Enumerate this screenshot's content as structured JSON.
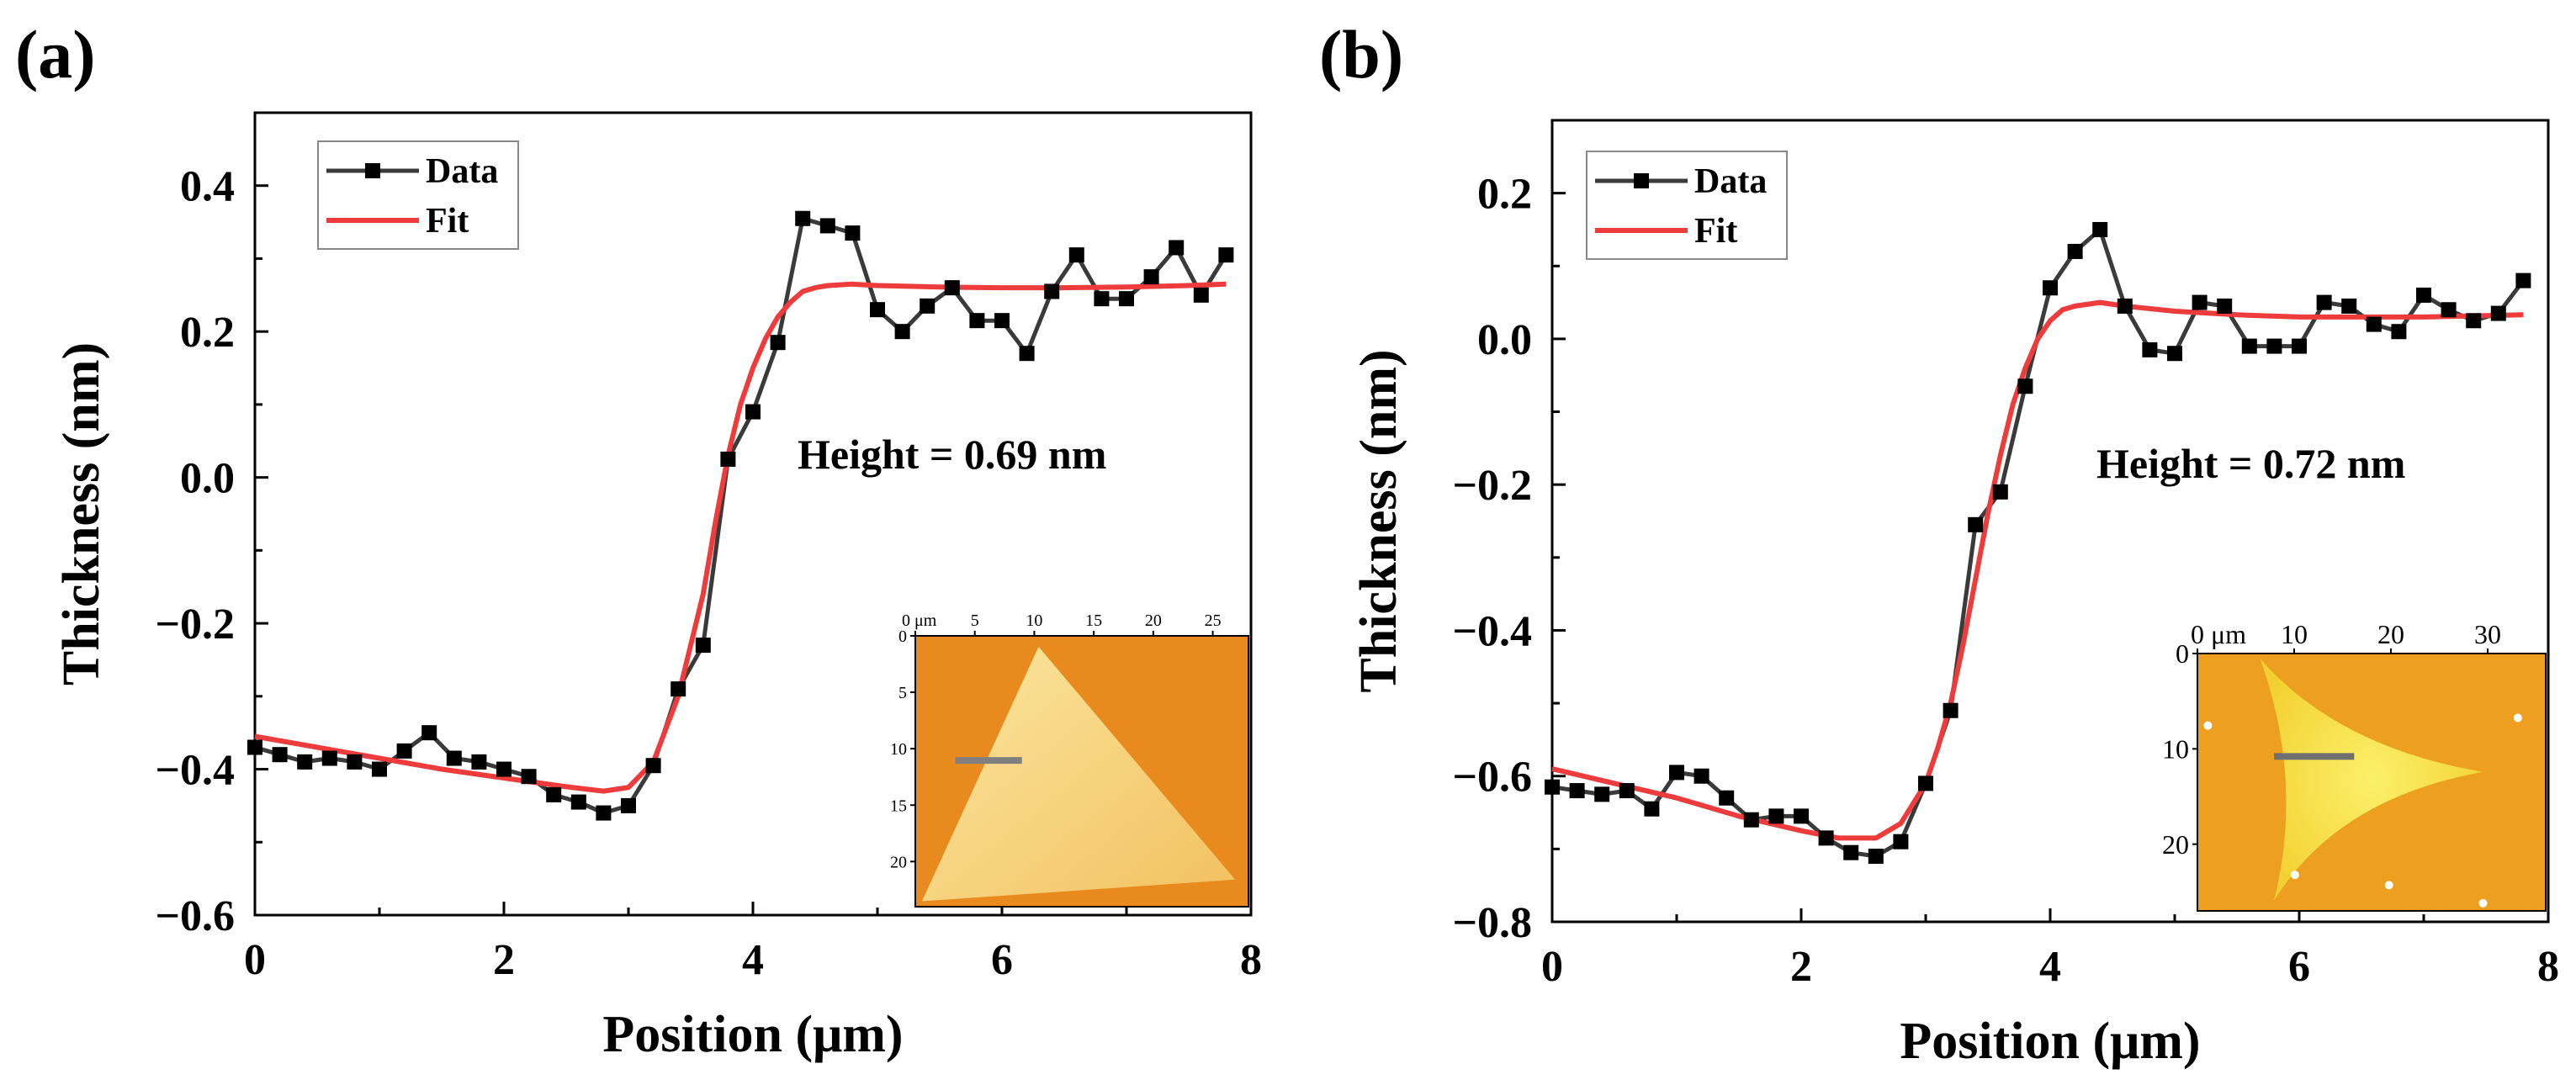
{
  "chart_data": [
    {
      "type": "line",
      "panel_label": "(a)",
      "title": "",
      "xlabel": "Position (μm)",
      "ylabel": "Thickness (nm)",
      "xlim": [
        0,
        8
      ],
      "ylim": [
        -0.6,
        0.5
      ],
      "xticks": [
        0,
        2,
        4,
        6,
        8
      ],
      "yticks": [
        -0.6,
        -0.4,
        -0.2,
        0.0,
        0.2,
        0.4
      ],
      "ytick_labels": [
        "−0.6",
        "−0.4",
        "−0.2",
        "0.0",
        "0.2",
        "0.4"
      ],
      "legend": {
        "placement": "top-left",
        "entries": [
          "Data",
          "Fit"
        ]
      },
      "annotation": "Height = 0.69 nm",
      "series": [
        {
          "name": "Data",
          "color": "#3a3a3a",
          "marker": "square",
          "x": [
            0,
            0.2,
            0.4,
            0.6,
            0.8,
            1.0,
            1.2,
            1.4,
            1.6,
            1.8,
            2.0,
            2.2,
            2.4,
            2.6,
            2.8,
            3.0,
            3.2,
            3.4,
            3.6,
            3.8,
            4.0,
            4.2,
            4.4,
            4.6,
            4.8,
            5.0,
            5.2,
            5.4,
            5.6,
            5.8,
            6.0,
            6.2,
            6.4,
            6.6,
            6.8,
            7.0,
            7.2,
            7.4,
            7.6,
            7.8
          ],
          "y": [
            -0.37,
            -0.38,
            -0.39,
            -0.385,
            -0.39,
            -0.4,
            -0.375,
            -0.35,
            -0.385,
            -0.39,
            -0.4,
            -0.41,
            -0.435,
            -0.445,
            -0.46,
            -0.45,
            -0.395,
            -0.29,
            -0.23,
            0.025,
            0.09,
            0.185,
            0.355,
            0.345,
            0.335,
            0.23,
            0.2,
            0.235,
            0.26,
            0.215,
            0.215,
            0.17,
            0.255,
            0.305,
            0.245,
            0.245,
            0.275,
            0.315,
            0.25,
            0.305
          ]
        },
        {
          "name": "Fit",
          "color": "#ee3b3b",
          "x": [
            0,
            0.5,
            1.0,
            1.5,
            2.0,
            2.5,
            2.8,
            3.0,
            3.2,
            3.4,
            3.6,
            3.7,
            3.8,
            3.9,
            4.0,
            4.1,
            4.2,
            4.3,
            4.4,
            4.5,
            4.6,
            4.8,
            5.0,
            5.5,
            6.0,
            6.5,
            7.0,
            7.5,
            7.8
          ],
          "y": [
            -0.355,
            -0.37,
            -0.385,
            -0.4,
            -0.412,
            -0.424,
            -0.43,
            -0.425,
            -0.39,
            -0.3,
            -0.16,
            -0.06,
            0.03,
            0.1,
            0.15,
            0.19,
            0.22,
            0.24,
            0.255,
            0.26,
            0.263,
            0.265,
            0.263,
            0.261,
            0.26,
            0.26,
            0.261,
            0.263,
            0.265
          ]
        }
      ],
      "inset": {
        "description_free": true,
        "xtick_labels": [
          "0 μm",
          "5",
          "10",
          "15",
          "20",
          "25"
        ],
        "ytick_labels": [
          "0",
          "5",
          "10",
          "15",
          "20"
        ],
        "x_max": 28,
        "y_max": 24,
        "colors": {
          "background": "#e88a1e",
          "flake": "#f8d070",
          "line": "#808080"
        }
      }
    },
    {
      "type": "line",
      "panel_label": "(b)",
      "title": "",
      "xlabel": "Position (μm)",
      "ylabel": "Thickness (nm)",
      "xlim": [
        0,
        8
      ],
      "ylim": [
        -0.8,
        0.3
      ],
      "xticks": [
        0,
        2,
        4,
        6,
        8
      ],
      "yticks": [
        -0.8,
        -0.6,
        -0.4,
        -0.2,
        0.0,
        0.2
      ],
      "ytick_labels": [
        "−0.8",
        "−0.6",
        "−0.4",
        "−0.2",
        "0.0",
        "0.2"
      ],
      "legend": {
        "placement": "top-left",
        "entries": [
          "Data",
          "Fit"
        ]
      },
      "annotation": "Height = 0.72 nm",
      "series": [
        {
          "name": "Data",
          "color": "#3a3a3a",
          "marker": "square",
          "x": [
            0,
            0.2,
            0.4,
            0.6,
            0.8,
            1.0,
            1.2,
            1.4,
            1.6,
            1.8,
            2.0,
            2.2,
            2.4,
            2.6,
            2.8,
            3.0,
            3.2,
            3.4,
            3.6,
            3.8,
            4.0,
            4.2,
            4.4,
            4.6,
            4.8,
            5.0,
            5.2,
            5.4,
            5.6,
            5.8,
            6.0,
            6.2,
            6.4,
            6.6,
            6.8,
            7.0,
            7.2,
            7.4,
            7.6,
            7.8
          ],
          "y": [
            -0.615,
            -0.62,
            -0.625,
            -0.62,
            -0.645,
            -0.595,
            -0.6,
            -0.63,
            -0.66,
            -0.655,
            -0.655,
            -0.685,
            -0.705,
            -0.71,
            -0.69,
            -0.61,
            -0.51,
            -0.255,
            -0.21,
            -0.065,
            0.07,
            0.12,
            0.15,
            0.045,
            -0.015,
            -0.02,
            0.05,
            0.045,
            -0.01,
            -0.01,
            -0.01,
            0.05,
            0.045,
            0.02,
            0.01,
            0.06,
            0.04,
            0.025,
            0.035,
            0.08
          ]
        },
        {
          "name": "Fit",
          "color": "#ee3b3b",
          "x": [
            0,
            0.5,
            1.0,
            1.5,
            2.0,
            2.3,
            2.6,
            2.8,
            3.0,
            3.1,
            3.2,
            3.3,
            3.4,
            3.5,
            3.6,
            3.7,
            3.8,
            3.9,
            4.0,
            4.1,
            4.2,
            4.4,
            4.6,
            5.0,
            5.5,
            6.0,
            6.5,
            7.0,
            7.5,
            7.8
          ],
          "y": [
            -0.59,
            -0.61,
            -0.63,
            -0.655,
            -0.675,
            -0.685,
            -0.685,
            -0.665,
            -0.61,
            -0.56,
            -0.5,
            -0.42,
            -0.33,
            -0.24,
            -0.16,
            -0.09,
            -0.04,
            0.0,
            0.025,
            0.04,
            0.045,
            0.05,
            0.045,
            0.038,
            0.033,
            0.03,
            0.03,
            0.03,
            0.032,
            0.033
          ]
        }
      ],
      "inset": {
        "description_free": true,
        "xtick_labels": [
          "0 μm",
          "10",
          "20",
          "30"
        ],
        "ytick_labels": [
          "0",
          "10",
          "20"
        ],
        "x_max": 36,
        "y_max": 27,
        "colors": {
          "background": "#eda020",
          "flake": "#f8e23a",
          "line": "#707070"
        }
      }
    }
  ]
}
